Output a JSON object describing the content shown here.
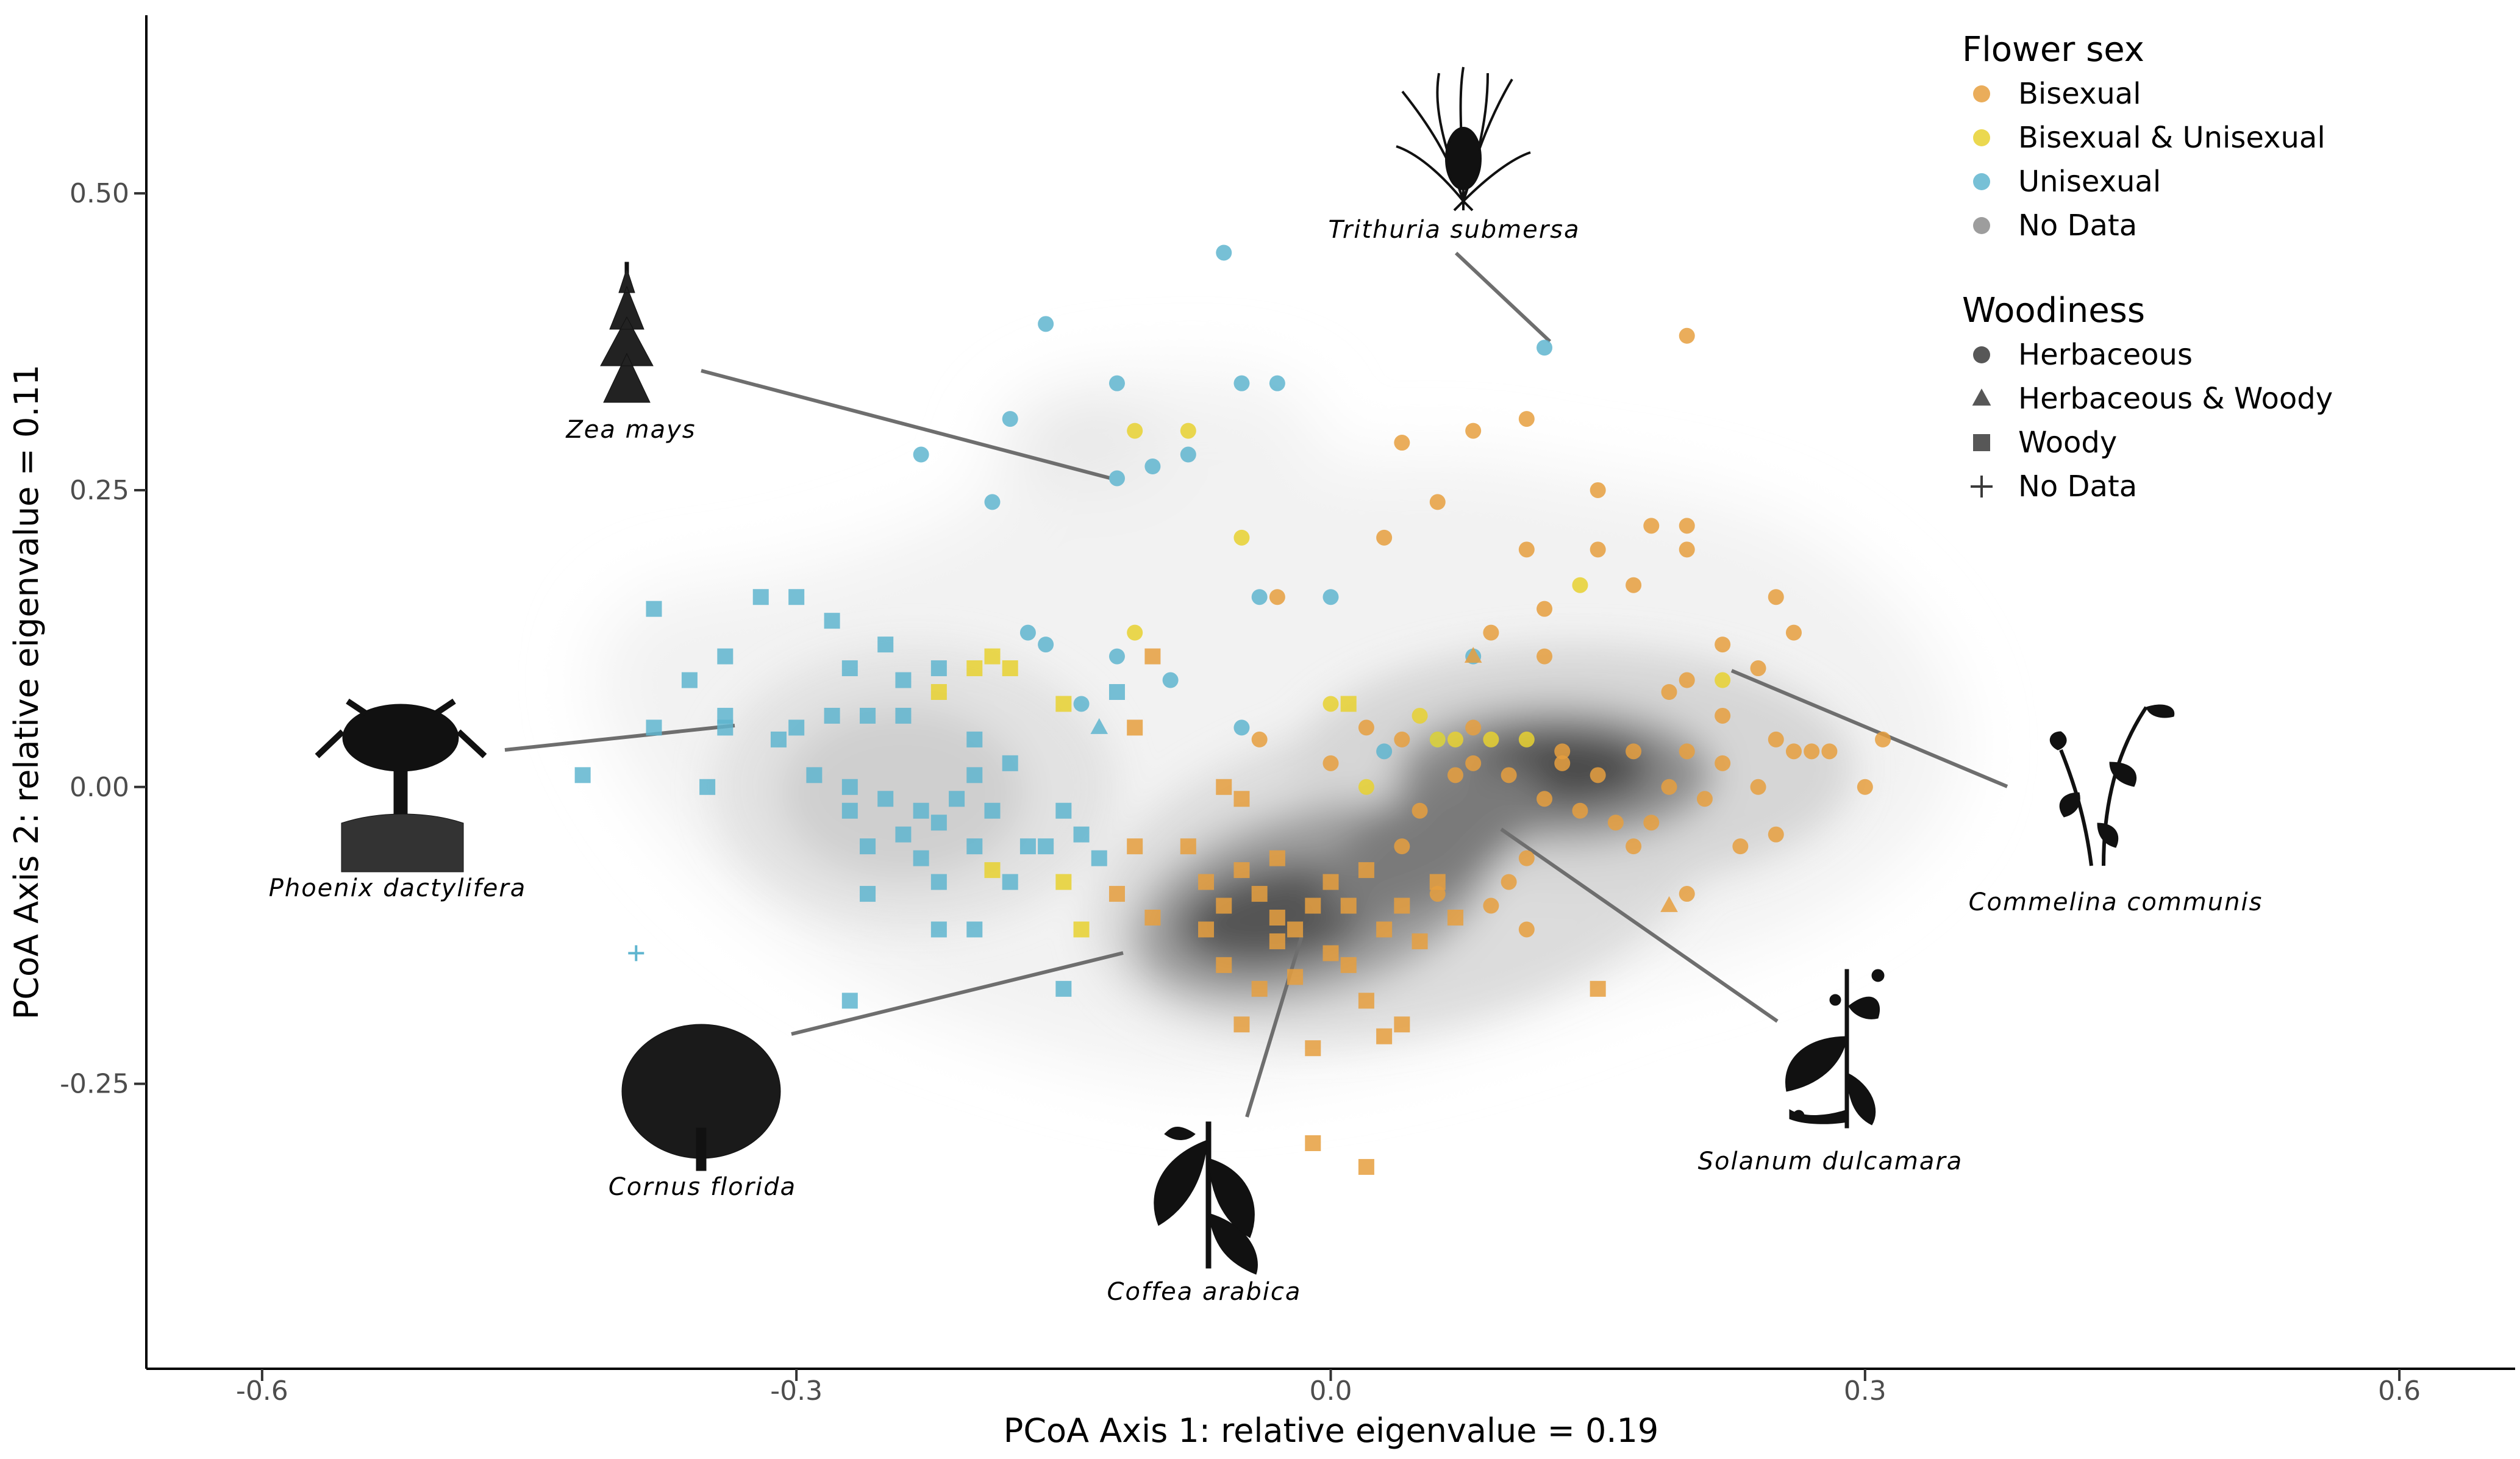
{
  "chart_data": {
    "type": "scatter",
    "xlabel": "PCoA Axis 1: relative eigenvalue = 0.19",
    "ylabel": "PCoA Axis 2: relative eigenvalue = 0.11",
    "xlim": [
      -0.665,
      0.665
    ],
    "ylim": [
      -0.49,
      0.65
    ],
    "x_ticks": [
      -0.6,
      -0.3,
      0.0,
      0.3,
      0.6
    ],
    "x_tick_labels": [
      "-0.6",
      "-0.3",
      "0.0",
      "0.3",
      "0.6"
    ],
    "y_ticks": [
      -0.25,
      0.0,
      0.25,
      0.5
    ],
    "y_tick_labels": [
      "-0.25",
      "0.00",
      "0.25",
      "0.50"
    ],
    "grid": false,
    "background_density": true,
    "legend_position": "top-right",
    "legends": [
      {
        "title": "Flower sex",
        "entries": [
          {
            "label": "Bisexual",
            "color": "#E69F3E",
            "shape": "circle"
          },
          {
            "label": "Bisexual & Unisexual",
            "color": "#E8D130",
            "shape": "circle"
          },
          {
            "label": "Unisexual",
            "color": "#5FB5CF",
            "shape": "circle"
          },
          {
            "label": "No Data",
            "color": "#8C8C8C",
            "shape": "circle"
          }
        ]
      },
      {
        "title": "Woodiness",
        "entries": [
          {
            "label": "Herbaceous",
            "color": "#3a3a3a",
            "shape": "circle"
          },
          {
            "label": "Herbaceous & Woody",
            "color": "#3a3a3a",
            "shape": "triangle"
          },
          {
            "label": "Woody",
            "color": "#3a3a3a",
            "shape": "square"
          },
          {
            "label": "No Data",
            "color": "#3a3a3a",
            "shape": "plus"
          }
        ]
      }
    ],
    "series": [
      {
        "sex": "Unisexual",
        "woodiness": "Herbaceous",
        "points": [
          [
            -0.06,
            0.45
          ],
          [
            -0.16,
            0.39
          ],
          [
            -0.12,
            0.34
          ],
          [
            -0.05,
            0.34
          ],
          [
            -0.03,
            0.34
          ],
          [
            -0.18,
            0.31
          ],
          [
            -0.23,
            0.28
          ],
          [
            -0.08,
            0.28
          ],
          [
            -0.1,
            0.27
          ],
          [
            -0.12,
            0.26
          ],
          [
            -0.19,
            0.24
          ],
          [
            -0.04,
            0.16
          ],
          [
            0.0,
            0.16
          ],
          [
            -0.17,
            0.13
          ],
          [
            -0.16,
            0.12
          ],
          [
            -0.12,
            0.11
          ],
          [
            -0.09,
            0.09
          ],
          [
            -0.14,
            0.07
          ],
          [
            -0.05,
            0.05
          ],
          [
            0.08,
            0.11
          ],
          [
            0.12,
            0.37
          ],
          [
            0.06,
            0.04
          ],
          [
            0.03,
            0.03
          ]
        ]
      },
      {
        "sex": "Bisexual & Unisexual",
        "woodiness": "Herbaceous",
        "points": [
          [
            -0.11,
            0.3
          ],
          [
            -0.08,
            0.3
          ],
          [
            -0.05,
            0.21
          ],
          [
            -0.11,
            0.13
          ],
          [
            0.14,
            0.17
          ],
          [
            0.0,
            0.07
          ],
          [
            0.05,
            0.06
          ],
          [
            0.06,
            0.04
          ],
          [
            0.09,
            0.04
          ],
          [
            0.11,
            0.04
          ],
          [
            0.02,
            0.0
          ],
          [
            0.22,
            0.09
          ],
          [
            0.07,
            0.04
          ]
        ]
      },
      {
        "sex": "Bisexual",
        "woodiness": "Herbaceous",
        "points": [
          [
            0.2,
            0.38
          ],
          [
            0.11,
            0.31
          ],
          [
            0.08,
            0.3
          ],
          [
            0.04,
            0.29
          ],
          [
            0.15,
            0.25
          ],
          [
            0.06,
            0.24
          ],
          [
            0.03,
            0.21
          ],
          [
            0.18,
            0.22
          ],
          [
            0.2,
            0.22
          ],
          [
            0.11,
            0.2
          ],
          [
            0.15,
            0.2
          ],
          [
            0.2,
            0.2
          ],
          [
            0.17,
            0.17
          ],
          [
            -0.03,
            0.16
          ],
          [
            0.12,
            0.15
          ],
          [
            0.25,
            0.16
          ],
          [
            0.26,
            0.13
          ],
          [
            0.09,
            0.13
          ],
          [
            0.12,
            0.11
          ],
          [
            0.22,
            0.12
          ],
          [
            0.2,
            0.09
          ],
          [
            0.24,
            0.1
          ],
          [
            0.19,
            0.08
          ],
          [
            0.22,
            0.06
          ],
          [
            0.31,
            0.04
          ],
          [
            0.27,
            0.03
          ],
          [
            0.28,
            0.03
          ],
          [
            0.25,
            0.04
          ],
          [
            0.3,
            0.0
          ],
          [
            0.24,
            0.0
          ],
          [
            0.21,
            -0.01
          ],
          [
            0.25,
            -0.04
          ],
          [
            0.23,
            -0.05
          ],
          [
            0.2,
            -0.09
          ],
          [
            0.17,
            -0.05
          ],
          [
            0.16,
            -0.03
          ],
          [
            0.14,
            -0.02
          ],
          [
            0.12,
            -0.01
          ],
          [
            0.1,
            0.01
          ],
          [
            0.08,
            0.02
          ],
          [
            0.13,
            0.02
          ],
          [
            0.15,
            0.01
          ],
          [
            0.17,
            0.03
          ],
          [
            0.11,
            -0.06
          ],
          [
            0.1,
            -0.08
          ],
          [
            0.09,
            -0.1
          ],
          [
            0.11,
            -0.12
          ],
          [
            0.06,
            -0.09
          ],
          [
            0.04,
            -0.05
          ],
          [
            0.05,
            -0.02
          ],
          [
            0.0,
            0.02
          ],
          [
            -0.04,
            0.04
          ],
          [
            0.02,
            0.05
          ],
          [
            0.04,
            0.04
          ],
          [
            0.08,
            0.05
          ],
          [
            0.26,
            0.03
          ],
          [
            0.19,
            0.0
          ],
          [
            0.18,
            -0.03
          ],
          [
            0.13,
            0.03
          ],
          [
            0.07,
            0.01
          ],
          [
            0.22,
            0.02
          ],
          [
            0.2,
            0.03
          ]
        ]
      },
      {
        "sex": "Bisexual",
        "woodiness": "Woody",
        "points": [
          [
            -0.1,
            0.11
          ],
          [
            -0.11,
            0.05
          ],
          [
            -0.06,
            0.0
          ],
          [
            -0.05,
            -0.01
          ],
          [
            -0.11,
            -0.05
          ],
          [
            -0.08,
            -0.05
          ],
          [
            -0.07,
            -0.08
          ],
          [
            -0.12,
            -0.09
          ],
          [
            -0.1,
            -0.11
          ],
          [
            -0.06,
            -0.1
          ],
          [
            -0.05,
            -0.07
          ],
          [
            -0.04,
            -0.09
          ],
          [
            -0.03,
            -0.11
          ],
          [
            -0.02,
            -0.12
          ],
          [
            -0.01,
            -0.1
          ],
          [
            0.01,
            -0.1
          ],
          [
            0.03,
            -0.12
          ],
          [
            0.04,
            -0.1
          ],
          [
            0.06,
            -0.08
          ],
          [
            -0.06,
            -0.15
          ],
          [
            -0.04,
            -0.17
          ],
          [
            -0.02,
            -0.16
          ],
          [
            0.0,
            -0.14
          ],
          [
            0.02,
            -0.18
          ],
          [
            0.04,
            -0.2
          ],
          [
            -0.05,
            -0.2
          ],
          [
            -0.01,
            -0.22
          ],
          [
            0.03,
            -0.21
          ],
          [
            -0.01,
            -0.3
          ],
          [
            0.02,
            -0.32
          ],
          [
            0.15,
            -0.17
          ],
          [
            -0.03,
            -0.13
          ],
          [
            0.0,
            -0.08
          ],
          [
            0.02,
            -0.07
          ],
          [
            -0.07,
            -0.12
          ],
          [
            0.01,
            -0.15
          ],
          [
            0.05,
            -0.13
          ],
          [
            0.07,
            -0.11
          ],
          [
            -0.03,
            -0.06
          ]
        ]
      },
      {
        "sex": "Bisexual",
        "woodiness": "Herbaceous & Woody",
        "points": [
          [
            0.08,
            0.11
          ],
          [
            0.19,
            -0.1
          ]
        ]
      },
      {
        "sex": "Unisexual",
        "woodiness": "Woody",
        "points": [
          [
            -0.38,
            0.15
          ],
          [
            -0.32,
            0.16
          ],
          [
            -0.3,
            0.16
          ],
          [
            -0.28,
            0.14
          ],
          [
            -0.27,
            0.1
          ],
          [
            -0.25,
            0.12
          ],
          [
            -0.24,
            0.09
          ],
          [
            -0.22,
            0.1
          ],
          [
            -0.26,
            0.06
          ],
          [
            -0.28,
            0.06
          ],
          [
            -0.3,
            0.05
          ],
          [
            -0.34,
            0.11
          ],
          [
            -0.36,
            0.09
          ],
          [
            -0.34,
            0.06
          ],
          [
            -0.38,
            0.05
          ],
          [
            -0.34,
            0.05
          ],
          [
            -0.42,
            0.01
          ],
          [
            -0.35,
            0.0
          ],
          [
            -0.31,
            0.04
          ],
          [
            -0.29,
            0.01
          ],
          [
            -0.27,
            0.0
          ],
          [
            -0.25,
            -0.01
          ],
          [
            -0.23,
            -0.02
          ],
          [
            -0.21,
            -0.01
          ],
          [
            -0.2,
            0.01
          ],
          [
            -0.19,
            -0.02
          ],
          [
            -0.22,
            -0.03
          ],
          [
            -0.24,
            -0.04
          ],
          [
            -0.2,
            -0.05
          ],
          [
            -0.23,
            -0.06
          ],
          [
            -0.22,
            -0.08
          ],
          [
            -0.18,
            -0.08
          ],
          [
            -0.27,
            -0.02
          ],
          [
            -0.26,
            -0.05
          ],
          [
            -0.26,
            -0.09
          ],
          [
            -0.22,
            -0.12
          ],
          [
            -0.2,
            -0.12
          ],
          [
            -0.15,
            -0.02
          ],
          [
            -0.14,
            -0.04
          ],
          [
            -0.16,
            -0.05
          ],
          [
            -0.15,
            -0.17
          ],
          [
            -0.27,
            -0.18
          ],
          [
            -0.12,
            0.08
          ],
          [
            -0.13,
            -0.06
          ],
          [
            -0.18,
            0.02
          ],
          [
            -0.2,
            0.04
          ],
          [
            -0.17,
            -0.05
          ],
          [
            -0.24,
            0.06
          ]
        ]
      },
      {
        "sex": "Bisexual & Unisexual",
        "woodiness": "Woody",
        "points": [
          [
            -0.19,
            0.11
          ],
          [
            -0.2,
            0.1
          ],
          [
            -0.18,
            0.1
          ],
          [
            -0.22,
            0.08
          ],
          [
            -0.15,
            0.07
          ],
          [
            -0.19,
            -0.07
          ],
          [
            -0.15,
            -0.08
          ],
          [
            -0.14,
            -0.12
          ],
          [
            0.01,
            0.07
          ]
        ]
      },
      {
        "sex": "Unisexual",
        "woodiness": "Herbaceous & Woody",
        "points": [
          [
            -0.13,
            0.05
          ]
        ]
      },
      {
        "sex": "Unisexual",
        "woodiness": "No Data",
        "points": [
          [
            -0.39,
            -0.14
          ]
        ]
      }
    ],
    "annotations": [
      {
        "label": "Trithuria submersa",
        "x": 0.12,
        "y": 0.37
      },
      {
        "label": "Zea mays",
        "x": -0.12,
        "y": 0.26
      },
      {
        "label": "Phoenix dactylifera",
        "x": -0.34,
        "y": 0.05
      },
      {
        "label": "Cornus florida",
        "x": -0.12,
        "y": -0.14
      },
      {
        "label": "Coffea arabica",
        "x": -0.02,
        "y": -0.13
      },
      {
        "label": "Solanum dulcamara",
        "x": 0.1,
        "y": -0.04
      },
      {
        "label": "Commelina communis",
        "x": 0.22,
        "y": 0.09
      }
    ]
  }
}
